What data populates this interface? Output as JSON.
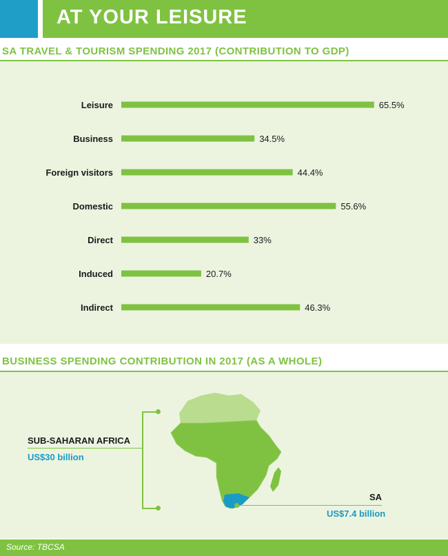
{
  "header": {
    "title": "AT YOUR LEISURE"
  },
  "section1": {
    "title": "SA TRAVEL & TOURISM SPENDING 2017 (CONTRIBUTION TO GDP)"
  },
  "chart_data": {
    "type": "bar",
    "orientation": "horizontal",
    "title": "SA TRAVEL & TOURISM SPENDING 2017 (CONTRIBUTION TO GDP)",
    "categories": [
      "Leisure",
      "Business",
      "Foreign visitors",
      "Domestic",
      "Direct",
      "Induced",
      "Indirect"
    ],
    "values": [
      65.5,
      34.5,
      44.4,
      55.6,
      33,
      20.7,
      46.3
    ],
    "value_labels": [
      "65.5%",
      "34.5%",
      "44.4%",
      "55.6%",
      "33%",
      "20.7%",
      "46.3%"
    ],
    "xlim": [
      0,
      100
    ],
    "grid": false,
    "bar_color": "#7fc241"
  },
  "section2": {
    "title": "BUSINESS SPENDING CONTRIBUTION IN 2017 (AS A WHOLE)",
    "ssa_label": "SUB-SAHARAN AFRICA",
    "ssa_value": "US$30 billion",
    "sa_label": "SA",
    "sa_value": "US$7.4 billion"
  },
  "footer": {
    "source": "Source: TBCSA"
  },
  "colors": {
    "green": "#7fc241",
    "blue": "#1f9fc8",
    "light_green": "#b9dc8e",
    "panel": "#ecf4e0"
  }
}
